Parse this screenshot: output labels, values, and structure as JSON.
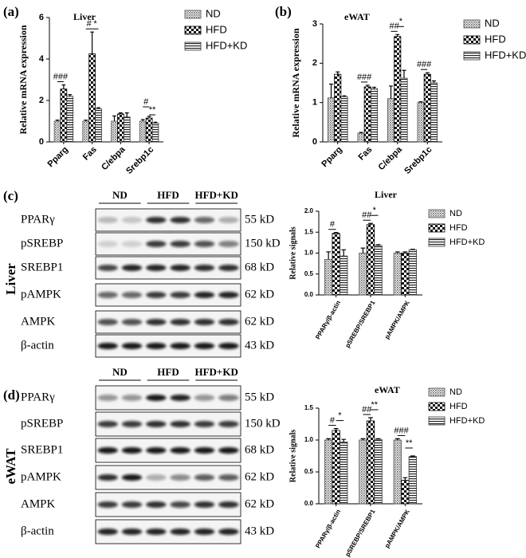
{
  "panel_labels": [
    "(a)",
    "(b)",
    "(c)",
    "(d)"
  ],
  "chart_data": [
    {
      "type": "bar",
      "title": "Liver",
      "y_label": "Relative mRNA expression",
      "categories": [
        "Pparg",
        "Fas",
        "C/ebpa",
        "Srebp1c"
      ],
      "series": [
        {
          "name": "ND",
          "color": "#555555",
          "pattern": "dots",
          "values": [
            1.0,
            1.0,
            1.0,
            1.0
          ],
          "errors": [
            0.05,
            0.05,
            0.25,
            0.08
          ]
        },
        {
          "name": "HFD",
          "color": "#000000",
          "pattern": "checker",
          "values": [
            2.55,
            4.25,
            1.35,
            1.15
          ],
          "errors": [
            0.2,
            1.05,
            0.05,
            0.08
          ]
        },
        {
          "name": "HFD+KD",
          "color": "#333333",
          "pattern": "hlines",
          "values": [
            2.2,
            1.6,
            1.2,
            0.9
          ],
          "errors": [
            0.08,
            0.05,
            0.2,
            0.05
          ]
        }
      ],
      "ylim": [
        0,
        6
      ],
      "yticks": [
        0,
        2,
        4,
        6
      ],
      "annotations": [
        "###",
        "#",
        "*",
        "#",
        "**"
      ]
    },
    {
      "type": "bar",
      "title": "eWAT",
      "y_label": "Relative mRNA expression",
      "categories": [
        "Pparg",
        "Fas",
        "C/ebpa",
        "Srebp1c"
      ],
      "series": [
        {
          "name": "ND",
          "color": "#555555",
          "pattern": "dots",
          "values": [
            1.12,
            0.22,
            1.1,
            1.0
          ],
          "errors": [
            0.35,
            0.02,
            0.32,
            0.02
          ]
        },
        {
          "name": "HFD",
          "color": "#000000",
          "pattern": "checker",
          "values": [
            1.72,
            1.4,
            2.68,
            1.72
          ],
          "errors": [
            0.06,
            0.04,
            0.05,
            0.04
          ]
        },
        {
          "name": "HFD+KD",
          "color": "#333333",
          "pattern": "hlines",
          "values": [
            1.15,
            1.35,
            1.62,
            1.5
          ],
          "errors": [
            0.02,
            0.04,
            0.2,
            0.05
          ]
        }
      ],
      "ylim": [
        0,
        3
      ],
      "yticks": [
        0,
        1,
        2,
        3
      ],
      "annotations": [
        "###",
        "##",
        "*",
        "###"
      ]
    },
    {
      "type": "bar",
      "title": "Liver",
      "y_label": "Relative signals",
      "categories": [
        "PPARγ/β-actin",
        "pSREBP/SREBP1",
        "pAMPK/AMPK"
      ],
      "series": [
        {
          "name": "ND",
          "color": "#555555",
          "pattern": "dots",
          "values": [
            0.85,
            1.0,
            1.0
          ],
          "errors": [
            0.18,
            0.12,
            0.03
          ]
        },
        {
          "name": "HFD",
          "color": "#000000",
          "pattern": "checker",
          "values": [
            1.47,
            1.68,
            1.0
          ],
          "errors": [
            0.02,
            0.03,
            0.03
          ]
        },
        {
          "name": "HFD+KD",
          "color": "#333333",
          "pattern": "hlines",
          "values": [
            0.93,
            1.18,
            1.08
          ],
          "errors": [
            0.15,
            0.02,
            0.01
          ]
        }
      ],
      "ylim": [
        0,
        2
      ],
      "yticks": [
        {
          "value": 0,
          "label": "0.0"
        },
        {
          "value": 0.5,
          "label": "0.5"
        },
        {
          "value": 1,
          "label": "1.0"
        },
        {
          "value": 1.5,
          "label": "1.5"
        },
        {
          "value": 2,
          "label": "2.0"
        }
      ],
      "annotations": [
        "#",
        "##",
        "*"
      ]
    },
    {
      "type": "bar",
      "title": "eWAT",
      "y_label": "Relative signals",
      "categories": [
        "PPARγ/β-actin",
        "pSREBP/SREBP1",
        "pAMPK/AMPK"
      ],
      "series": [
        {
          "name": "ND",
          "color": "#555555",
          "pattern": "dots",
          "values": [
            1.0,
            1.0,
            1.0
          ],
          "errors": [
            0.02,
            0.02,
            0.02
          ]
        },
        {
          "name": "HFD",
          "color": "#000000",
          "pattern": "checker",
          "values": [
            1.15,
            1.3,
            0.37
          ],
          "errors": [
            0.03,
            0.05,
            0.04
          ]
        },
        {
          "name": "HFD+KD",
          "color": "#333333",
          "pattern": "hlines",
          "values": [
            0.97,
            1.01,
            0.74
          ],
          "errors": [
            0.04,
            0.01,
            0.01
          ]
        }
      ],
      "ylim": [
        0,
        1.5
      ],
      "yticks": [
        {
          "value": 0,
          "label": "0.0"
        },
        {
          "value": 0.5,
          "label": "0.5"
        },
        {
          "value": 1,
          "label": "1.0"
        },
        {
          "value": 1.5,
          "label": "1.5"
        }
      ],
      "annotations": [
        "#",
        "*",
        "##",
        "**",
        "###",
        "**"
      ]
    }
  ],
  "blots": [
    {
      "tissue": "Liver",
      "groups": [
        "ND",
        "HFD",
        "HFD+KD"
      ],
      "rows": [
        {
          "protein": "PPARγ",
          "size": "55 kD"
        },
        {
          "protein": "pSREBP",
          "size": "150 kD"
        },
        {
          "protein": "SREBP1",
          "size": "68 kD"
        },
        {
          "protein": "pAMPK",
          "size": "62 kD"
        },
        {
          "protein": "AMPK",
          "size": "62 kD"
        },
        {
          "protein": "β-actin",
          "size": "43 kD"
        }
      ]
    },
    {
      "tissue": "eWAT",
      "groups": [
        "ND",
        "HFD",
        "HFD+KD"
      ],
      "rows": [
        {
          "protein": "PPARγ",
          "size": "55 kD"
        },
        {
          "protein": "pSREBP",
          "size": "150 kD"
        },
        {
          "protein": "SREBP1",
          "size": "68 kD"
        },
        {
          "protein": "pAMPK",
          "size": "62 kD"
        },
        {
          "protein": "AMPK",
          "size": "62 kD"
        },
        {
          "protein": "β-actin",
          "size": "43 kD"
        }
      ]
    }
  ]
}
